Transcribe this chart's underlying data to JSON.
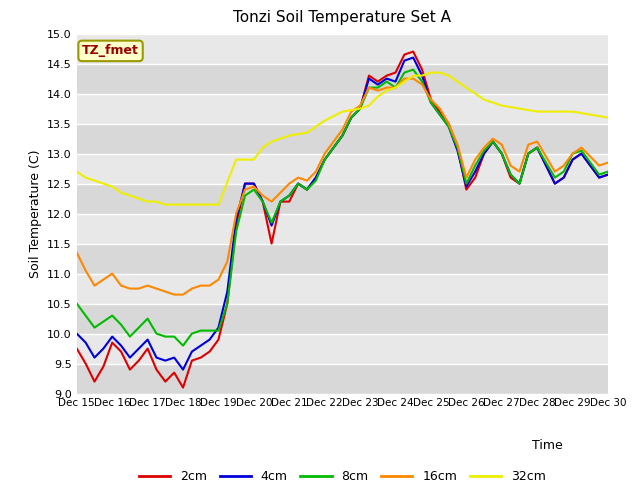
{
  "title": "Tonzi Soil Temperature Set A",
  "xlabel": "Time",
  "ylabel": "Soil Temperature (C)",
  "ylim": [
    9.0,
    15.0
  ],
  "yticks": [
    9.0,
    9.5,
    10.0,
    10.5,
    11.0,
    11.5,
    12.0,
    12.5,
    13.0,
    13.5,
    14.0,
    14.5,
    15.0
  ],
  "x_labels": [
    "Dec 15",
    "Dec 16",
    "Dec 17",
    "Dec 18",
    "Dec 19",
    "Dec 20",
    "Dec 21",
    "Dec 22",
    "Dec 23",
    "Dec 24",
    "Dec 25",
    "Dec 26",
    "Dec 27",
    "Dec 28",
    "Dec 29",
    "Dec 30"
  ],
  "annotation_label": "TZ_fmet",
  "annotation_color": "#990000",
  "annotation_bg": "#ffffcc",
  "annotation_border": "#999900",
  "background_color": "#e8e8e8",
  "grid_color": "#ffffff",
  "series_order": [
    "2cm",
    "4cm",
    "8cm",
    "16cm",
    "32cm"
  ],
  "series": {
    "2cm": {
      "color": "#dd0000",
      "linewidth": 1.5,
      "x": [
        15,
        15.25,
        15.5,
        15.75,
        16,
        16.25,
        16.5,
        16.75,
        17,
        17.25,
        17.5,
        17.75,
        18,
        18.25,
        18.5,
        18.75,
        19,
        19.25,
        19.5,
        19.75,
        20,
        20.25,
        20.5,
        20.75,
        21,
        21.25,
        21.5,
        21.75,
        22,
        22.25,
        22.5,
        22.75,
        23,
        23.25,
        23.5,
        23.75,
        24,
        24.25,
        24.5,
        24.75,
        25,
        25.25,
        25.5,
        25.75,
        26,
        26.25,
        26.5,
        26.75,
        27,
        27.25,
        27.5,
        27.75,
        28,
        28.25,
        28.5,
        28.75,
        29,
        29.25,
        29.5,
        29.75,
        30
      ],
      "y": [
        9.75,
        9.5,
        9.2,
        9.45,
        9.85,
        9.7,
        9.4,
        9.55,
        9.75,
        9.4,
        9.2,
        9.35,
        9.1,
        9.55,
        9.6,
        9.7,
        9.9,
        10.5,
        11.8,
        12.5,
        12.5,
        12.2,
        11.5,
        12.2,
        12.2,
        12.5,
        12.4,
        12.6,
        12.9,
        13.1,
        13.3,
        13.6,
        13.75,
        14.3,
        14.2,
        14.3,
        14.35,
        14.65,
        14.7,
        14.4,
        13.9,
        13.7,
        13.5,
        13.1,
        12.4,
        12.6,
        13.0,
        13.2,
        13.0,
        12.6,
        12.5,
        13.0,
        13.1,
        12.8,
        12.5,
        12.6,
        12.9,
        13.0,
        12.8,
        12.6,
        12.65
      ]
    },
    "4cm": {
      "color": "#0000dd",
      "linewidth": 1.5,
      "x": [
        15,
        15.25,
        15.5,
        15.75,
        16,
        16.25,
        16.5,
        16.75,
        17,
        17.25,
        17.5,
        17.75,
        18,
        18.25,
        18.5,
        18.75,
        19,
        19.25,
        19.5,
        19.75,
        20,
        20.25,
        20.5,
        20.75,
        21,
        21.25,
        21.5,
        21.75,
        22,
        22.25,
        22.5,
        22.75,
        23,
        23.25,
        23.5,
        23.75,
        24,
        24.25,
        24.5,
        24.75,
        25,
        25.25,
        25.5,
        25.75,
        26,
        26.25,
        26.5,
        26.75,
        27,
        27.25,
        27.5,
        27.75,
        28,
        28.25,
        28.5,
        28.75,
        29,
        29.25,
        29.5,
        29.75,
        30
      ],
      "y": [
        10.0,
        9.85,
        9.6,
        9.75,
        9.95,
        9.8,
        9.6,
        9.75,
        9.9,
        9.6,
        9.55,
        9.6,
        9.4,
        9.7,
        9.8,
        9.9,
        10.1,
        10.7,
        11.9,
        12.5,
        12.5,
        12.2,
        11.8,
        12.2,
        12.3,
        12.5,
        12.4,
        12.6,
        12.9,
        13.1,
        13.3,
        13.6,
        13.75,
        14.25,
        14.15,
        14.25,
        14.2,
        14.55,
        14.6,
        14.3,
        13.85,
        13.65,
        13.45,
        13.05,
        12.45,
        12.7,
        13.0,
        13.2,
        13.0,
        12.65,
        12.5,
        13.0,
        13.1,
        12.8,
        12.5,
        12.6,
        12.9,
        13.0,
        12.8,
        12.6,
        12.65
      ]
    },
    "8cm": {
      "color": "#00bb00",
      "linewidth": 1.5,
      "x": [
        15,
        15.25,
        15.5,
        15.75,
        16,
        16.25,
        16.5,
        16.75,
        17,
        17.25,
        17.5,
        17.75,
        18,
        18.25,
        18.5,
        18.75,
        19,
        19.25,
        19.5,
        19.75,
        20,
        20.25,
        20.5,
        20.75,
        21,
        21.25,
        21.5,
        21.75,
        22,
        22.25,
        22.5,
        22.75,
        23,
        23.25,
        23.5,
        23.75,
        24,
        24.25,
        24.5,
        24.75,
        25,
        25.25,
        25.5,
        25.75,
        26,
        26.25,
        26.5,
        26.75,
        27,
        27.25,
        27.5,
        27.75,
        28,
        28.25,
        28.5,
        28.75,
        29,
        29.25,
        29.5,
        29.75,
        30
      ],
      "y": [
        10.5,
        10.3,
        10.1,
        10.2,
        10.3,
        10.15,
        9.95,
        10.1,
        10.25,
        10.0,
        9.95,
        9.95,
        9.8,
        10.0,
        10.05,
        10.05,
        10.05,
        10.5,
        11.7,
        12.3,
        12.4,
        12.2,
        11.85,
        12.2,
        12.3,
        12.5,
        12.4,
        12.55,
        12.9,
        13.1,
        13.3,
        13.6,
        13.75,
        14.1,
        14.1,
        14.2,
        14.1,
        14.35,
        14.4,
        14.2,
        13.85,
        13.65,
        13.45,
        13.1,
        12.5,
        12.8,
        13.05,
        13.2,
        13.0,
        12.65,
        12.5,
        13.0,
        13.1,
        12.85,
        12.6,
        12.7,
        13.0,
        13.05,
        12.85,
        12.65,
        12.7
      ]
    },
    "16cm": {
      "color": "#ff8800",
      "linewidth": 1.5,
      "x": [
        15,
        15.25,
        15.5,
        15.75,
        16,
        16.25,
        16.5,
        16.75,
        17,
        17.25,
        17.5,
        17.75,
        18,
        18.25,
        18.5,
        18.75,
        19,
        19.25,
        19.5,
        19.75,
        20,
        20.25,
        20.5,
        20.75,
        21,
        21.25,
        21.5,
        21.75,
        22,
        22.25,
        22.5,
        22.75,
        23,
        23.25,
        23.5,
        23.75,
        24,
        24.25,
        24.5,
        24.75,
        25,
        25.25,
        25.5,
        25.75,
        26,
        26.25,
        26.5,
        26.75,
        27,
        27.25,
        27.5,
        27.75,
        28,
        28.25,
        28.5,
        28.75,
        29,
        29.25,
        29.5,
        29.75,
        30
      ],
      "y": [
        11.35,
        11.05,
        10.8,
        10.9,
        11.0,
        10.8,
        10.75,
        10.75,
        10.8,
        10.75,
        10.7,
        10.65,
        10.65,
        10.75,
        10.8,
        10.8,
        10.9,
        11.2,
        12.0,
        12.4,
        12.45,
        12.3,
        12.2,
        12.35,
        12.5,
        12.6,
        12.55,
        12.7,
        13.0,
        13.2,
        13.4,
        13.7,
        13.8,
        14.1,
        14.05,
        14.1,
        14.1,
        14.25,
        14.25,
        14.15,
        13.9,
        13.75,
        13.5,
        13.15,
        12.6,
        12.9,
        13.1,
        13.25,
        13.15,
        12.8,
        12.7,
        13.15,
        13.2,
        12.95,
        12.7,
        12.8,
        13.0,
        13.1,
        12.95,
        12.8,
        12.85
      ]
    },
    "32cm": {
      "color": "#eeee00",
      "linewidth": 1.5,
      "x": [
        15,
        15.25,
        15.5,
        15.75,
        16,
        16.25,
        16.5,
        16.75,
        17,
        17.25,
        17.5,
        17.75,
        18,
        18.5,
        19,
        19.5,
        20,
        20.25,
        20.5,
        20.75,
        21,
        21.5,
        22,
        22.5,
        23,
        23.25,
        23.5,
        23.75,
        24,
        24.25,
        24.5,
        24.75,
        25,
        25.25,
        25.5,
        25.75,
        26,
        26.5,
        27,
        27.5,
        28,
        28.5,
        29,
        29.5,
        30
      ],
      "y": [
        12.7,
        12.6,
        12.55,
        12.5,
        12.45,
        12.35,
        12.3,
        12.25,
        12.2,
        12.2,
        12.15,
        12.15,
        12.15,
        12.15,
        12.15,
        12.9,
        12.9,
        13.1,
        13.2,
        13.25,
        13.3,
        13.35,
        13.55,
        13.7,
        13.75,
        13.8,
        13.95,
        14.05,
        14.1,
        14.2,
        14.3,
        14.3,
        14.35,
        14.35,
        14.3,
        14.2,
        14.1,
        13.9,
        13.8,
        13.75,
        13.7,
        13.7,
        13.7,
        13.65,
        13.6
      ]
    }
  }
}
